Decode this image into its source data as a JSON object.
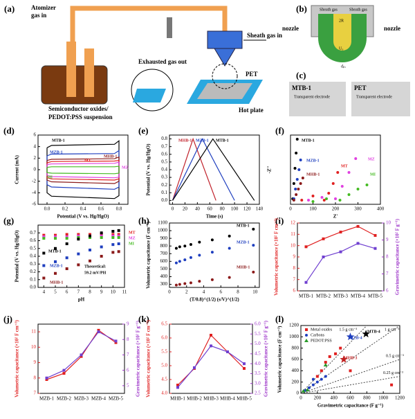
{
  "figure": {
    "a": {
      "label": "(a)",
      "atomizer": [
        "Atomizer",
        "gas in"
      ],
      "exhaust": "Exhausted gas out",
      "sheath": "Sheath gas in",
      "pet": "PET",
      "hot": "Hot plate",
      "suspension": [
        "Semiconductor oxides/",
        "PEDOT:PSS suspension"
      ]
    },
    "b": {
      "label": "(b)",
      "nozzle": [
        "nozzle",
        "nozzle"
      ],
      "sheath": [
        "Sheath gas",
        "Sheath gas"
      ],
      "radius": "2R",
      "velocity": "U₀",
      "diameter": "dₚᵣ"
    },
    "c": {
      "label": "(c)",
      "left": "MTB-1",
      "right": "PET",
      "caption": [
        "Transparent electrode",
        "Transparent electrode"
      ]
    }
  },
  "chart_data": [
    {
      "type": "line",
      "panel": "(d)",
      "xlabel": "Potential (V vs. Hg/HgO)",
      "ylabel": "Current (mA)",
      "xlim": [
        -0.1,
        0.9
      ],
      "xticks": [
        {
          "value": 0,
          "label": "0.0"
        },
        0.2,
        0.4,
        0.6,
        0.8
      ],
      "ylim": [
        -6,
        6
      ],
      "yticks": [
        -6,
        -4,
        -2,
        0,
        2,
        4,
        6
      ],
      "x": [
        0,
        0.05,
        0.75,
        0.8,
        0.8,
        0.75,
        0.05,
        0,
        0
      ],
      "series": [
        {
          "name": "MTB-1",
          "color": "#000000",
          "values": [
            3.8,
            4.2,
            4.4,
            5,
            -4.5,
            -5,
            -4.6,
            -4,
            3.8
          ]
        },
        {
          "name": "MZB-1",
          "color": "#1f3fbf",
          "values": [
            2.4,
            2.7,
            2.8,
            3.3,
            -3,
            -3.4,
            -3,
            -2.6,
            2.4
          ]
        },
        {
          "name": "MHB-1",
          "color": "#8b1a1a",
          "values": [
            1.6,
            1.8,
            1.9,
            2.2,
            -2,
            -2.4,
            -2.1,
            -1.8,
            1.6
          ]
        },
        {
          "name": "MT",
          "color": "#e02020",
          "values": [
            1.2,
            1.4,
            1.5,
            1.6,
            -1.6,
            -1.8,
            -1.6,
            -1.4,
            1.2
          ]
        },
        {
          "name": "MZ",
          "color": "#e040e0",
          "values": [
            0.9,
            1.0,
            1.1,
            1.3,
            -1.3,
            -1.4,
            -1.2,
            -1.0,
            0.9
          ]
        },
        {
          "name": "MI",
          "color": "#44bb22",
          "values": [
            0.4,
            0.5,
            0.5,
            0.6,
            -0.6,
            -0.7,
            -0.6,
            -0.5,
            0.4
          ]
        }
      ]
    },
    {
      "type": "line",
      "panel": "(e)",
      "xlabel": "Time (s)",
      "ylabel": "Potential (V vs. Hg/HgO)",
      "xlim": [
        -5,
        140
      ],
      "xticks": [
        0,
        20,
        40,
        60,
        80,
        100,
        120,
        140
      ],
      "ylim": [
        -0.05,
        0.85
      ],
      "yticks": [
        {
          "value": 0,
          "label": "0.0"
        },
        0.1,
        0.2,
        0.3,
        0.4,
        0.5,
        0.6,
        0.7,
        0.8
      ],
      "series": [
        {
          "name": "MHB-1",
          "color": "#c0202a",
          "x": [
            0,
            33,
            70
          ],
          "values": [
            0,
            0.8,
            0
          ]
        },
        {
          "name": "MZB-1",
          "color": "#1f3fbf",
          "x": [
            0,
            48,
            100
          ],
          "values": [
            0,
            0.8,
            0
          ]
        },
        {
          "name": "MTB-1",
          "color": "#000000",
          "x": [
            0,
            65,
            132
          ],
          "values": [
            0,
            0.8,
            0
          ]
        }
      ]
    },
    {
      "type": "scatter",
      "panel": "(f)",
      "xlabel": "Z'",
      "ylabel": "-Z''",
      "xlim": [
        0,
        400
      ],
      "xticks": [
        0,
        100,
        200,
        300,
        400
      ],
      "ylim": [
        0,
        500
      ],
      "series": [
        {
          "name": "MTB-1",
          "color": "#000000",
          "marker": "circle",
          "x": [
            10,
            15,
            20,
            25,
            30
          ],
          "values": [
            40,
            150,
            260,
            370,
            470
          ]
        },
        {
          "name": "MZB-1",
          "color": "#1f3fbf",
          "marker": "circle",
          "x": [
            15,
            22,
            30,
            38,
            45
          ],
          "values": [
            40,
            110,
            180,
            250,
            320
          ]
        },
        {
          "name": "MHB-1",
          "color": "#8b1a1a",
          "marker": "circle",
          "x": [
            15,
            25,
            35,
            45,
            55
          ],
          "values": [
            30,
            70,
            110,
            150,
            190
          ]
        },
        {
          "name": "MT",
          "color": "#e02020",
          "marker": "circle",
          "x": [
            50,
            100,
            150,
            170,
            190,
            210
          ],
          "values": [
            30,
            60,
            30,
            80,
            150,
            230
          ]
        },
        {
          "name": "MZ",
          "color": "#e040e0",
          "marker": "circle",
          "x": [
            80,
            140,
            200,
            230,
            260,
            290
          ],
          "values": [
            30,
            50,
            40,
            130,
            230,
            330
          ]
        },
        {
          "name": "MI",
          "color": "#44bb22",
          "marker": "circle",
          "x": [
            100,
            160,
            220,
            260,
            300,
            340
          ],
          "values": [
            20,
            40,
            30,
            70,
            110,
            140
          ]
        }
      ]
    },
    {
      "type": "scatter",
      "panel": "(g)",
      "xlabel": "pH",
      "ylabel": "Potential (V vs. Hg/HgO)",
      "annotation": [
        "Theoretical:",
        "59.2 mV/PH"
      ],
      "xlim": [
        3.5,
        11
      ],
      "xticks": [
        4,
        5,
        6,
        7,
        8,
        9,
        10,
        11
      ],
      "ylim": [
        0,
        0.8
      ],
      "yticks": [
        {
          "value": 0,
          "label": "0.0"
        },
        0.1,
        0.2,
        0.3,
        0.4,
        0.5,
        0.6,
        0.7
      ],
      "x": [
        4,
        5,
        6,
        7,
        8,
        9,
        10,
        10.5
      ],
      "series": [
        {
          "name": "MT",
          "color": "#e02020",
          "marker": "square",
          "values": [
            0.67,
            0.67,
            0.68,
            0.68,
            0.68,
            0.68,
            0.68,
            0.68
          ]
        },
        {
          "name": "MZ",
          "color": "#e040e0",
          "marker": "square",
          "values": [
            0.65,
            0.65,
            0.65,
            0.66,
            0.66,
            0.66,
            0.66,
            0.66
          ]
        },
        {
          "name": "MI",
          "color": "#44bb22",
          "marker": "square",
          "values": [
            0.63,
            0.63,
            0.63,
            0.64,
            0.64,
            0.64,
            0.64,
            0.64
          ]
        },
        {
          "name": "MTB-1",
          "color": "#000000",
          "marker": "square",
          "values": [
            0.44,
            0.5,
            0.56,
            0.62,
            0.66,
            0.7,
            0.72,
            0.73
          ]
        },
        {
          "name": "MZB-1",
          "color": "#1f3fbf",
          "marker": "square",
          "values": [
            0.28,
            0.33,
            0.38,
            0.43,
            0.48,
            0.52,
            0.55,
            0.56
          ]
        },
        {
          "name": "MHB-1",
          "color": "#8b1a1a",
          "marker": "square",
          "values": [
            0.12,
            0.18,
            0.24,
            0.29,
            0.34,
            0.4,
            0.45,
            0.46
          ]
        }
      ]
    },
    {
      "type": "scatter",
      "panel": "(h)",
      "xlabel": "(T/0.8)^(1/2) (s/V)^(1/2)",
      "ylabel": "Volumetric capacitance (F cm⁻³)",
      "xlim": [
        0,
        10.5
      ],
      "xticks": [
        0,
        2,
        4,
        6,
        8,
        10
      ],
      "ylim": [
        260,
        1100
      ],
      "yticks": [
        300,
        400,
        500,
        600,
        700,
        800,
        900,
        1000,
        1100
      ],
      "x": [
        0.8,
        1.2,
        1.8,
        2.5,
        3.5,
        5,
        7,
        9.8
      ],
      "series": [
        {
          "name": "MTB-1",
          "color": "#000000",
          "marker": "circle",
          "values": [
            770,
            790,
            800,
            820,
            850,
            880,
            930,
            1020
          ]
        },
        {
          "name": "MZB-1",
          "color": "#1f3fbf",
          "marker": "circle",
          "values": [
            580,
            600,
            620,
            650,
            680,
            720,
            770,
            810
          ]
        },
        {
          "name": "MHB-1",
          "color": "#8b1a1a",
          "marker": "circle",
          "values": [
            290,
            300,
            310,
            320,
            340,
            360,
            390,
            460
          ]
        }
      ]
    },
    {
      "type": "line",
      "panel": "(i)",
      "ylabel": "Volumetric capacitance (×10² F cm⁻³)",
      "y2label": "Gravimetric capacitance (×10² F g⁻¹)",
      "y_color": "#e02020",
      "y2_color": "#9b30c8",
      "categories": [
        "MTB-1",
        "MTB-2",
        "MTB-3",
        "MTB-4",
        "MTB-5"
      ],
      "ylim": [
        6,
        12
      ],
      "yticks": [
        6,
        7,
        8,
        9,
        10,
        11,
        12
      ],
      "y2lim": [
        6,
        10
      ],
      "y2ticks": [
        6,
        7,
        8,
        9,
        10
      ],
      "series": [
        {
          "name": "Volumetric",
          "color": "#e02020",
          "marker": "square",
          "values": [
            9.9,
            10.6,
            11.2,
            11.7,
            10.9
          ]
        },
        {
          "name": "Gravimetric",
          "color": "#7040d0",
          "marker": "square",
          "axis": "y2",
          "values": [
            6.5,
            8.0,
            8.3,
            8.8,
            8.5
          ]
        }
      ]
    },
    {
      "type": "line",
      "panel": "(j)",
      "ylabel": "Volumetric capacitance (×10² F cm⁻³)",
      "y2label": "Gravimetric capacitance (×10² F g⁻¹)",
      "y_color": "#e02020",
      "y2_color": "#9b30c8",
      "categories": [
        "MZB-1",
        "MZB-2",
        "MZB-3",
        "MZB-4",
        "MZB-5"
      ],
      "ylim": [
        7,
        11.5
      ],
      "yticks": [
        7,
        8,
        9,
        10,
        11
      ],
      "y2lim": [
        4.5,
        9
      ],
      "y2ticks": [
        5,
        6,
        7,
        8,
        9
      ],
      "series": [
        {
          "name": "Volumetric",
          "color": "#e02020",
          "marker": "square",
          "values": [
            7.9,
            8.3,
            9.4,
            11.1,
            10.3
          ]
        },
        {
          "name": "Gravimetric",
          "color": "#7040d0",
          "marker": "square",
          "axis": "y2",
          "values": [
            5.5,
            6.0,
            7.0,
            8.5,
            7.9
          ]
        }
      ]
    },
    {
      "type": "line",
      "panel": "(k)",
      "ylabel": "Volumetric capacitance (×10² F cm⁻³)",
      "y2label": "Gravimetric capacitance (×10² F g⁻¹)",
      "y_color": "#e02020",
      "y2_color": "#9b30c8",
      "categories": [
        "MHB-1",
        "MHB-2",
        "MHB-3",
        "MHB-4",
        "MHB-5"
      ],
      "ylim": [
        4,
        6.5
      ],
      "yticks": [
        {
          "value": 4,
          "label": "4.0"
        },
        4.5,
        {
          "value": 5,
          "label": "5.0"
        },
        5.5,
        {
          "value": 6,
          "label": "6.0"
        },
        6.5
      ],
      "y2lim": [
        2.5,
        6
      ],
      "y2ticks": [
        2.5,
        {
          "value": 3,
          "label": "3.0"
        },
        3.5,
        {
          "value": 4,
          "label": "4.0"
        },
        4.5,
        {
          "value": 5,
          "label": "5.0"
        },
        5.5,
        {
          "value": 6,
          "label": "6.0"
        }
      ],
      "series": [
        {
          "name": "Volumetric",
          "color": "#e02020",
          "marker": "square",
          "values": [
            4.3,
            4.9,
            6.1,
            5.5,
            4.9
          ]
        },
        {
          "name": "Gravimetric",
          "color": "#7040d0",
          "marker": "square",
          "axis": "y2",
          "values": [
            2.8,
            3.8,
            4.9,
            4.6,
            4.0
          ]
        }
      ]
    },
    {
      "type": "scatter",
      "panel": "(l)",
      "xlabel": "Gravimetric capacitance (F g⁻¹)",
      "ylabel": "Volumetric capacitance (F cm⁻³)",
      "legend": "upper left",
      "xlim": [
        0,
        1200
      ],
      "xticks": [
        0,
        200,
        400,
        600,
        800,
        1000,
        1200
      ],
      "ylim": [
        0,
        1200
      ],
      "yticks": [
        0,
        200,
        400,
        600,
        800,
        1000,
        1200
      ],
      "density_lines": [
        {
          "value": 1.5,
          "label": "1.5 g cm⁻³"
        },
        {
          "value": 1,
          "label": "1 g cm⁻³"
        },
        {
          "value": 0.5,
          "label": "0.5 g cm⁻³"
        },
        {
          "value": 0.25,
          "label": "0.25 g cm⁻³"
        }
      ],
      "series": [
        {
          "name": "Metal oxides",
          "color": "#e02020",
          "marker": "square",
          "x": [
            200,
            250,
            300,
            350,
            420,
            480,
            600,
            1100
          ],
          "values": [
            300,
            400,
            550,
            650,
            700,
            800,
            400,
            150
          ]
        },
        {
          "name": "Carbons",
          "color": "#1f3fbf",
          "marker": "circle",
          "x": [
            50,
            100,
            150,
            200,
            250,
            300,
            150
          ],
          "values": [
            50,
            100,
            150,
            200,
            250,
            300,
            250
          ]
        },
        {
          "name": "PEDOT:PSS",
          "color": "#2a9a2a",
          "marker": "triangle",
          "x": [
            30,
            80,
            300
          ],
          "values": [
            40,
            60,
            500
          ]
        },
        {
          "name": "MTB-4",
          "color": "#000000",
          "marker": "star",
          "x": [
            790
          ],
          "values": [
            1050
          ]
        },
        {
          "name": "MZB-4",
          "color": "#1f3fbf",
          "marker": "star",
          "x": [
            600
          ],
          "values": [
            1000
          ]
        },
        {
          "name": "MHB-3",
          "color": "#c02020",
          "marker": "star",
          "x": [
            520
          ],
          "values": [
            600
          ]
        }
      ]
    }
  ]
}
